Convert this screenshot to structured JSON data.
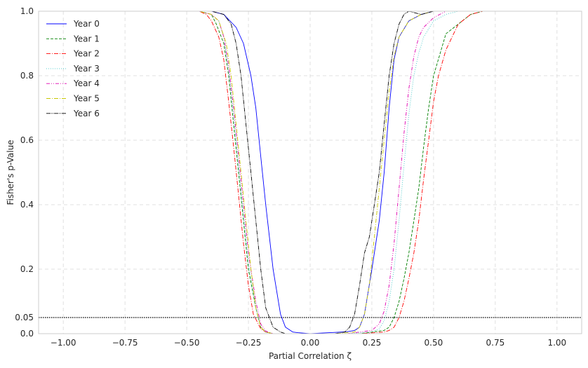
{
  "chart_data": {
    "type": "line",
    "xlabel": "Partial Correlation ζ",
    "ylabel": "Fisher's p-Value",
    "xlim": [
      -1.1,
      1.1
    ],
    "ylim": [
      0,
      1
    ],
    "xticks": [
      -1.0,
      -0.75,
      -0.5,
      -0.25,
      0.0,
      0.25,
      0.5,
      0.75,
      1.0
    ],
    "xtick_labels": [
      "−1.00",
      "−0.75",
      "−0.50",
      "−0.25",
      "0.00",
      "0.25",
      "0.50",
      "0.75",
      "1.00"
    ],
    "yticks": [
      0.0,
      0.05,
      0.2,
      0.4,
      0.6,
      0.8,
      1.0
    ],
    "ytick_labels": [
      "0.0",
      "0.05",
      "0.2",
      "0.4",
      "0.6",
      "0.8",
      "1.0"
    ],
    "grid": true,
    "legend_position": "top-left",
    "reference_line": {
      "y": 0.05,
      "style": "dotted",
      "color": "#000000"
    },
    "series": [
      {
        "name": "Year 0",
        "color": "#0000ff",
        "dash": "",
        "x": [
          -0.55,
          -0.4,
          -0.35,
          -0.3,
          -0.27,
          -0.24,
          -0.22,
          -0.2,
          -0.18,
          -0.15,
          -0.12,
          -0.1,
          -0.07,
          -0.05,
          0.0,
          0.05,
          0.1,
          0.15,
          0.18,
          0.2,
          0.22,
          0.25,
          0.28,
          0.3,
          0.32,
          0.34,
          0.36,
          0.4,
          0.45,
          0.5,
          0.6
        ],
        "values": [
          1.0,
          1.0,
          0.99,
          0.95,
          0.9,
          0.8,
          0.7,
          0.55,
          0.4,
          0.2,
          0.06,
          0.02,
          0.005,
          0.003,
          0.0,
          0.002,
          0.004,
          0.006,
          0.01,
          0.02,
          0.06,
          0.2,
          0.35,
          0.5,
          0.7,
          0.85,
          0.92,
          0.97,
          0.99,
          1.0,
          1.0
        ]
      },
      {
        "name": "Year 1",
        "color": "#008000",
        "dash": "4,2",
        "x": [
          -0.6,
          -0.45,
          -0.4,
          -0.38,
          -0.35,
          -0.33,
          -0.31,
          -0.29,
          -0.27,
          -0.25,
          -0.22,
          -0.2,
          -0.18,
          -0.15,
          0.0,
          0.1,
          0.2,
          0.25,
          0.3,
          0.32,
          0.34,
          0.36,
          0.38,
          0.4,
          0.42,
          0.44,
          0.46,
          0.48,
          0.5,
          0.55,
          0.6,
          0.65,
          0.7,
          0.8,
          0.9
        ],
        "values": [
          1.0,
          1.0,
          0.99,
          0.96,
          0.9,
          0.8,
          0.65,
          0.5,
          0.35,
          0.2,
          0.08,
          0.02,
          0.005,
          0.0,
          0.0,
          0.0,
          0.0,
          0.005,
          0.01,
          0.02,
          0.05,
          0.1,
          0.17,
          0.25,
          0.35,
          0.45,
          0.58,
          0.7,
          0.8,
          0.93,
          0.96,
          0.99,
          1.0,
          1.0,
          1.0
        ]
      },
      {
        "name": "Year 2",
        "color": "#ff0000",
        "dash": "6,2,1,2",
        "x": [
          -0.6,
          -0.45,
          -0.42,
          -0.4,
          -0.37,
          -0.35,
          -0.33,
          -0.31,
          -0.29,
          -0.27,
          -0.25,
          -0.23,
          -0.2,
          -0.18,
          -0.15,
          0.0,
          0.1,
          0.2,
          0.3,
          0.32,
          0.34,
          0.36,
          0.38,
          0.4,
          0.42,
          0.44,
          0.46,
          0.48,
          0.5,
          0.52,
          0.55,
          0.6,
          0.65,
          0.7,
          0.8
        ],
        "values": [
          1.0,
          1.0,
          0.99,
          0.97,
          0.92,
          0.85,
          0.72,
          0.58,
          0.43,
          0.28,
          0.15,
          0.06,
          0.015,
          0.005,
          0.0,
          0.0,
          0.0,
          0.0,
          0.005,
          0.01,
          0.02,
          0.05,
          0.1,
          0.17,
          0.25,
          0.35,
          0.48,
          0.6,
          0.72,
          0.8,
          0.88,
          0.96,
          0.99,
          1.0,
          1.0
        ]
      },
      {
        "name": "Year 3",
        "color": "#40c8c8",
        "dash": "1,2",
        "x": [
          -0.6,
          -0.45,
          -0.4,
          -0.37,
          -0.35,
          -0.33,
          -0.31,
          -0.29,
          -0.27,
          -0.25,
          -0.22,
          -0.2,
          -0.18,
          -0.15,
          0.0,
          0.15,
          0.25,
          0.28,
          0.3,
          0.32,
          0.34,
          0.36,
          0.38,
          0.4,
          0.42,
          0.44,
          0.46,
          0.5,
          0.55,
          0.6,
          0.65
        ],
        "values": [
          1.0,
          1.0,
          0.99,
          0.97,
          0.92,
          0.82,
          0.68,
          0.52,
          0.37,
          0.22,
          0.08,
          0.02,
          0.005,
          0.0,
          0.0,
          0.0,
          0.005,
          0.015,
          0.04,
          0.1,
          0.2,
          0.35,
          0.52,
          0.68,
          0.8,
          0.87,
          0.92,
          0.97,
          0.99,
          1.0,
          1.0
        ]
      },
      {
        "name": "Year 4",
        "color": "#e000b0",
        "dash": "5,2,1,2,1,2",
        "x": [
          -0.6,
          -0.45,
          -0.4,
          -0.37,
          -0.35,
          -0.33,
          -0.31,
          -0.29,
          -0.27,
          -0.25,
          -0.22,
          -0.2,
          -0.18,
          -0.15,
          0.0,
          0.15,
          0.25,
          0.28,
          0.3,
          0.32,
          0.34,
          0.36,
          0.38,
          0.4,
          0.42,
          0.44,
          0.46,
          0.5,
          0.55,
          0.6
        ],
        "values": [
          1.0,
          1.0,
          0.99,
          0.97,
          0.92,
          0.83,
          0.7,
          0.55,
          0.4,
          0.25,
          0.1,
          0.03,
          0.008,
          0.0,
          0.0,
          0.0,
          0.01,
          0.03,
          0.07,
          0.15,
          0.28,
          0.45,
          0.62,
          0.76,
          0.86,
          0.92,
          0.95,
          0.98,
          1.0,
          1.0
        ]
      },
      {
        "name": "Year 5",
        "color": "#c8c800",
        "dash": "6,2,1,2",
        "x": [
          -0.6,
          -0.45,
          -0.4,
          -0.37,
          -0.34,
          -0.32,
          -0.3,
          -0.28,
          -0.26,
          -0.24,
          -0.22,
          -0.2,
          -0.18,
          -0.15,
          0.0,
          0.1,
          0.18,
          0.2,
          0.22,
          0.24,
          0.26,
          0.28,
          0.3,
          0.32,
          0.34,
          0.36,
          0.4,
          0.45,
          0.5,
          0.55
        ],
        "values": [
          1.0,
          1.0,
          0.99,
          0.97,
          0.9,
          0.8,
          0.65,
          0.5,
          0.35,
          0.2,
          0.08,
          0.02,
          0.005,
          0.0,
          0.0,
          0.0,
          0.005,
          0.02,
          0.06,
          0.15,
          0.3,
          0.45,
          0.6,
          0.75,
          0.86,
          0.92,
          0.97,
          0.99,
          1.0,
          1.0
        ]
      },
      {
        "name": "Year 6",
        "color": "#000000",
        "dash": "6,1,1,1,1,1",
        "x": [
          -0.55,
          -0.4,
          -0.35,
          -0.32,
          -0.3,
          -0.28,
          -0.26,
          -0.24,
          -0.22,
          -0.2,
          -0.18,
          -0.15,
          -0.12,
          -0.1,
          0.0,
          0.1,
          0.14,
          0.16,
          0.18,
          0.2,
          0.22,
          0.24,
          0.26,
          0.28,
          0.3,
          0.32,
          0.34,
          0.36,
          0.38,
          0.4,
          0.45,
          0.5
        ],
        "values": [
          1.0,
          1.0,
          0.99,
          0.96,
          0.9,
          0.8,
          0.65,
          0.5,
          0.35,
          0.2,
          0.08,
          0.02,
          0.005,
          0.0,
          0.0,
          0.0,
          0.005,
          0.02,
          0.06,
          0.15,
          0.25,
          0.3,
          0.4,
          0.5,
          0.65,
          0.8,
          0.9,
          0.96,
          0.99,
          1.0,
          0.99,
          1.0
        ]
      }
    ]
  }
}
